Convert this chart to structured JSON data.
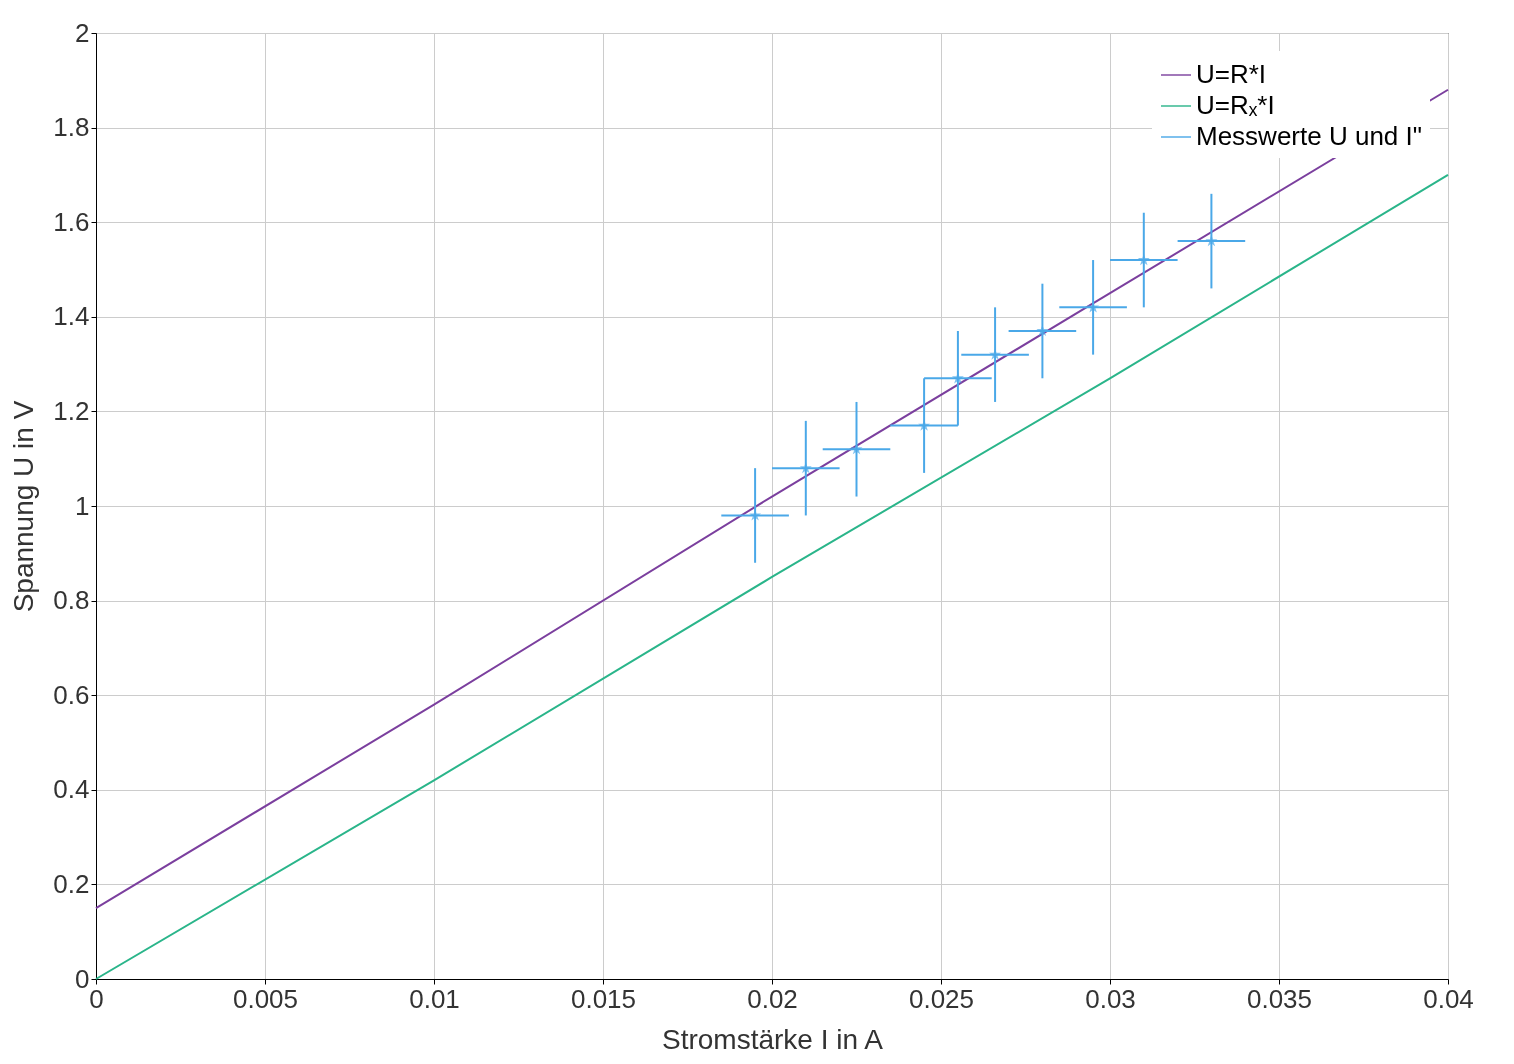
{
  "chart_data": {
    "type": "line",
    "xlabel": "Stromstärke I in A",
    "ylabel": "Spannung U in V",
    "xlim": [
      0,
      0.04
    ],
    "xticks": [
      0,
      0.005,
      0.01,
      0.015,
      0.02,
      0.025,
      0.03,
      0.035,
      0.04
    ],
    "ylim": [
      0,
      2
    ],
    "yticks": [
      0,
      0.2,
      0.4,
      0.6,
      0.8,
      1,
      1.2,
      1.4,
      1.6,
      1.8,
      2
    ],
    "grid": true,
    "legend": "top right",
    "series": [
      {
        "name": "U=R*I",
        "color": "#7b3f9e",
        "x": [
          0,
          0.01,
          0.02,
          0.03,
          0.04
        ],
        "values": [
          0.15,
          0.58,
          1.02,
          1.45,
          1.88
        ]
      },
      {
        "name": "U=Rₓ*I",
        "color": "#2ab58a",
        "x": [
          0,
          0.01,
          0.02,
          0.03,
          0.04
        ],
        "values": [
          0,
          0.42,
          0.85,
          1.27,
          1.7
        ]
      },
      {
        "name": "Messwerte U und I\"",
        "type": "scatter",
        "marker": "star",
        "color": "#4aa8e8",
        "x": [
          0.0195,
          0.021,
          0.0225,
          0.0245,
          0.0255,
          0.0266,
          0.028,
          0.0295,
          0.031,
          0.033
        ],
        "values": [
          0.98,
          1.08,
          1.12,
          1.17,
          1.27,
          1.32,
          1.37,
          1.42,
          1.52,
          1.56
        ],
        "errors": [
          0.1,
          0.1,
          0.1,
          0.1,
          0.1,
          0.1,
          0.1,
          0.1,
          0.1,
          0.1
        ],
        "xerrors": [
          0.001,
          0.001,
          0.001,
          0.001,
          0.001,
          0.001,
          0.001,
          0.001,
          0.001,
          0.001
        ]
      }
    ]
  }
}
